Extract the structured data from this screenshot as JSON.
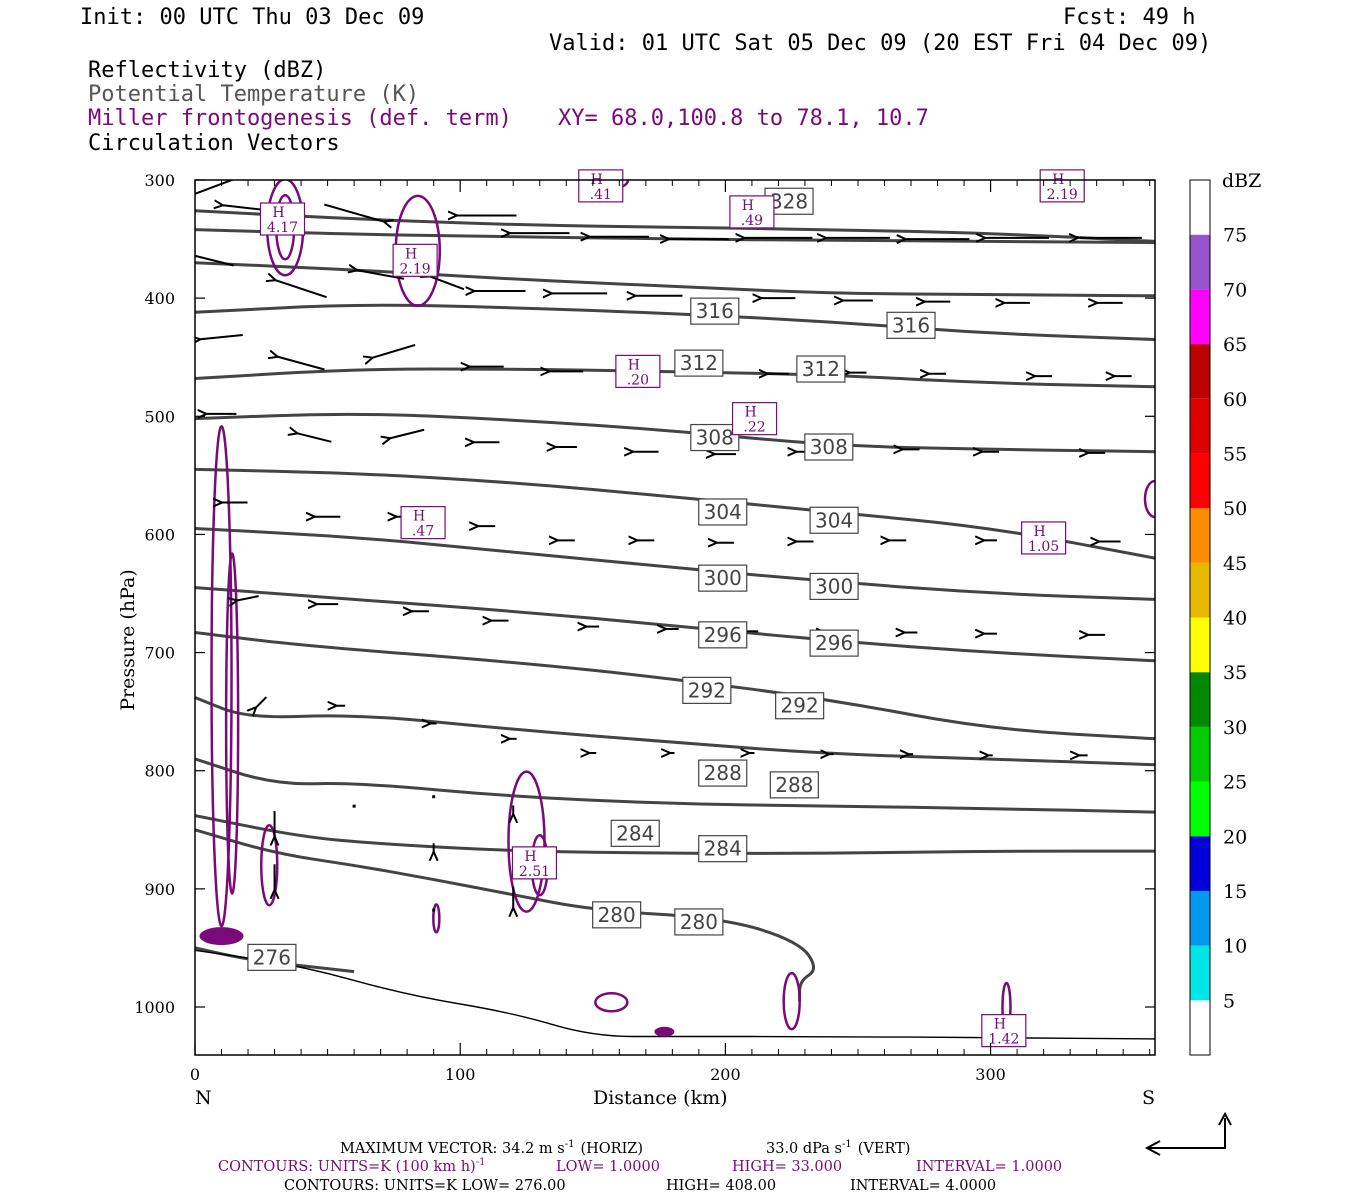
{
  "header": {
    "init": "Init: 00 UTC Thu 03 Dec 09",
    "fcst": "Fcst:   49 h",
    "valid": "Valid: 01 UTC Sat 05 Dec 09 (20 EST Fri 04 Dec 09)",
    "field1": "Reflectivity (dBZ)",
    "field2": "Potential Temperature (K)",
    "field3": "Miller frontogenesis (def. term)",
    "xy": "XY=  68.0,100.8 to  78.1, 10.7",
    "field4": "Circulation Vectors"
  },
  "colors": {
    "frontogenesis": "#7a0a7a",
    "theta": "#444444",
    "vectors": "#000000"
  },
  "footer": {
    "line1a": "MAXIMUM VECTOR:  34.2 m s",
    "line1b": "(HORIZ)",
    "line1c": "33.0 dPa s",
    "line1d": "(VERT)",
    "line2": "CONTOURS:  UNITS=K (100 km h)",
    "line2b": "LOW=   1.0000",
    "line2c": "HIGH=   33.000",
    "line2d": "INTERVAL=    1.0000",
    "line3": "CONTOURS:  UNITS=K   LOW=   276.00",
    "line3b": "HIGH=   408.00",
    "line3c": "INTERVAL=    4.0000",
    "sup": "-1"
  },
  "chart_data": {
    "type": "cross-section",
    "xlabel": "Distance (km)",
    "ylabel": "Pressure (hPa)",
    "x_ticks": [
      "0",
      "100",
      "200",
      "300"
    ],
    "y_ticks": [
      "300",
      "400",
      "500",
      "600",
      "700",
      "800",
      "900",
      "1000"
    ],
    "xlim": [
      0,
      362
    ],
    "ylim": [
      1040,
      300
    ],
    "x_start_label": "N",
    "x_end_label": "S",
    "colorbar": {
      "unit": "dBZ",
      "levels": [
        "5",
        "10",
        "15",
        "20",
        "25",
        "30",
        "35",
        "40",
        "45",
        "50",
        "55",
        "60",
        "65",
        "70",
        "75"
      ],
      "colors": [
        "#ffffff",
        "#00e5e5",
        "#0099ee",
        "#0000dd",
        "#00ff00",
        "#00cc00",
        "#008800",
        "#ffff00",
        "#e6b800",
        "#ff8c00",
        "#ff0000",
        "#dd0000",
        "#bb0000",
        "#ff00ff",
        "#9955cc",
        "#ffffff"
      ]
    },
    "theta_labels": [
      {
        "v": "328",
        "x": 224,
        "p": 318
      },
      {
        "v": "316",
        "x": 196,
        "p": 411
      },
      {
        "v": "316",
        "x": 270,
        "p": 423
      },
      {
        "v": "312",
        "x": 190,
        "p": 455
      },
      {
        "v": "312",
        "x": 236,
        "p": 460
      },
      {
        "v": "308",
        "x": 196,
        "p": 518
      },
      {
        "v": "308",
        "x": 239,
        "p": 526
      },
      {
        "v": "304",
        "x": 199,
        "p": 581
      },
      {
        "v": "304",
        "x": 241,
        "p": 588
      },
      {
        "v": "300",
        "x": 199,
        "p": 637
      },
      {
        "v": "300",
        "x": 241,
        "p": 644
      },
      {
        "v": "296",
        "x": 199,
        "p": 685
      },
      {
        "v": "296",
        "x": 241,
        "p": 692
      },
      {
        "v": "292",
        "x": 193,
        "p": 732
      },
      {
        "v": "292",
        "x": 228,
        "p": 745
      },
      {
        "v": "288",
        "x": 199,
        "p": 802
      },
      {
        "v": "288",
        "x": 226,
        "p": 812
      },
      {
        "v": "284",
        "x": 166,
        "p": 853
      },
      {
        "v": "284",
        "x": 199,
        "p": 866
      },
      {
        "v": "280",
        "x": 159,
        "p": 922
      },
      {
        "v": "280",
        "x": 190,
        "p": 928
      },
      {
        "v": "276",
        "x": 29,
        "p": 958
      }
    ],
    "theta_lines": [
      [
        [
          0,
          326
        ],
        [
          60,
          333
        ],
        [
          120,
          338
        ],
        [
          180,
          340
        ],
        [
          240,
          342
        ],
        [
          300,
          345
        ],
        [
          362,
          352
        ]
      ],
      [
        [
          0,
          342
        ],
        [
          60,
          346
        ],
        [
          120,
          348
        ],
        [
          180,
          350
        ],
        [
          240,
          351
        ],
        [
          300,
          352
        ],
        [
          362,
          353
        ]
      ],
      [
        [
          0,
          370
        ],
        [
          60,
          376
        ],
        [
          120,
          384
        ],
        [
          180,
          390
        ],
        [
          240,
          396
        ],
        [
          300,
          397
        ],
        [
          362,
          398
        ]
      ],
      [
        [
          0,
          412
        ],
        [
          60,
          405
        ],
        [
          120,
          408
        ],
        [
          180,
          413
        ],
        [
          240,
          420
        ],
        [
          300,
          430
        ],
        [
          362,
          435
        ]
      ],
      [
        [
          0,
          468
        ],
        [
          60,
          460
        ],
        [
          120,
          460
        ],
        [
          180,
          462
        ],
        [
          240,
          465
        ],
        [
          300,
          472
        ],
        [
          362,
          475
        ]
      ],
      [
        [
          0,
          502
        ],
        [
          60,
          497
        ],
        [
          120,
          503
        ],
        [
          180,
          512
        ],
        [
          240,
          525
        ],
        [
          300,
          528
        ],
        [
          362,
          530
        ]
      ],
      [
        [
          0,
          545
        ],
        [
          60,
          548
        ],
        [
          120,
          556
        ],
        [
          180,
          568
        ],
        [
          240,
          581
        ],
        [
          300,
          594
        ],
        [
          362,
          620
        ]
      ],
      [
        [
          0,
          595
        ],
        [
          60,
          602
        ],
        [
          120,
          615
        ],
        [
          180,
          628
        ],
        [
          240,
          640
        ],
        [
          300,
          650
        ],
        [
          362,
          655
        ]
      ],
      [
        [
          0,
          645
        ],
        [
          60,
          655
        ],
        [
          120,
          665
        ],
        [
          180,
          677
        ],
        [
          240,
          690
        ],
        [
          300,
          700
        ],
        [
          362,
          707
        ]
      ],
      [
        [
          0,
          683
        ],
        [
          40,
          694
        ],
        [
          120,
          708
        ],
        [
          180,
          722
        ],
        [
          240,
          740
        ],
        [
          300,
          765
        ],
        [
          362,
          773
        ]
      ],
      [
        [
          0,
          738
        ],
        [
          20,
          756
        ],
        [
          60,
          752
        ],
        [
          120,
          765
        ],
        [
          180,
          776
        ],
        [
          240,
          786
        ],
        [
          300,
          790
        ],
        [
          362,
          795
        ]
      ],
      [
        [
          0,
          790
        ],
        [
          30,
          812
        ],
        [
          60,
          810
        ],
        [
          120,
          822
        ],
        [
          180,
          828
        ],
        [
          240,
          830
        ],
        [
          300,
          832
        ],
        [
          362,
          835
        ]
      ],
      [
        [
          0,
          838
        ],
        [
          40,
          856
        ],
        [
          70,
          862
        ],
        [
          120,
          868
        ],
        [
          180,
          870
        ],
        [
          240,
          870
        ],
        [
          300,
          868
        ],
        [
          362,
          868
        ]
      ],
      [
        [
          0,
          850
        ],
        [
          30,
          870
        ],
        [
          60,
          880
        ],
        [
          90,
          892
        ],
        [
          120,
          905
        ],
        [
          150,
          918
        ],
        [
          200,
          925
        ],
        [
          228,
          945
        ],
        [
          235,
          968
        ],
        [
          228,
          978
        ],
        [
          228,
          995
        ]
      ],
      [
        [
          0,
          950
        ],
        [
          20,
          960
        ],
        [
          40,
          965
        ],
        [
          60,
          970
        ]
      ]
    ],
    "surface": [
      [
        0,
        952
      ],
      [
        40,
        965
      ],
      [
        80,
        990
      ],
      [
        120,
        1005
      ],
      [
        150,
        1025
      ],
      [
        180,
        1025
      ],
      [
        240,
        1025
      ],
      [
        300,
        1026
      ],
      [
        362,
        1027
      ]
    ],
    "frontogenesis_maxima": [
      {
        "v": "4.17",
        "x": 33,
        "p": 333
      },
      {
        "v": ".41",
        "x": 153,
        "p": 305
      },
      {
        "v": ".49",
        "x": 210,
        "p": 327
      },
      {
        "v": "2.19",
        "x": 327,
        "p": 305
      },
      {
        "v": "2.19",
        "x": 83,
        "p": 368
      },
      {
        "v": ".20",
        "x": 167,
        "p": 462
      },
      {
        "v": ".22",
        "x": 211,
        "p": 502
      },
      {
        "v": ".47",
        "x": 86,
        "p": 590
      },
      {
        "v": "1.05",
        "x": 320,
        "p": 603
      },
      {
        "v": "2.51",
        "x": 128,
        "p": 878
      },
      {
        "v": "1.42",
        "x": 305,
        "p": 1020
      }
    ],
    "vectors": [
      {
        "x": 2,
        "p": 310,
        "u": 0.8,
        "w": -0.3
      },
      {
        "x": 25,
        "p": 325,
        "u": -0.9,
        "w": -0.1
      },
      {
        "x": 60,
        "p": 328,
        "u": 0.7,
        "w": 0.2
      },
      {
        "x": 5,
        "p": 367,
        "u": -0.6,
        "w": -0.15
      },
      {
        "x": 40,
        "p": 392,
        "u": -0.6,
        "w": -0.2
      },
      {
        "x": 70,
        "p": 380,
        "u": -0.55,
        "w": -0.1
      },
      {
        "x": 95,
        "p": 387,
        "u": -0.4,
        "w": -0.15
      },
      {
        "x": 110,
        "p": 330,
        "u": -0.7,
        "w": 0
      },
      {
        "x": 130,
        "p": 345,
        "u": -0.7,
        "w": 0
      },
      {
        "x": 160,
        "p": 348,
        "u": -0.7,
        "w": 0
      },
      {
        "x": 190,
        "p": 350,
        "u": -0.7,
        "w": 0
      },
      {
        "x": 220,
        "p": 349,
        "u": -0.8,
        "w": 0
      },
      {
        "x": 250,
        "p": 349,
        "u": -0.75,
        "w": 0
      },
      {
        "x": 280,
        "p": 350,
        "u": -0.75,
        "w": 0
      },
      {
        "x": 310,
        "p": 349,
        "u": -0.75,
        "w": 0
      },
      {
        "x": 345,
        "p": 349,
        "u": -0.75,
        "w": 0
      },
      {
        "x": 115,
        "p": 394,
        "u": -0.6,
        "w": 0
      },
      {
        "x": 145,
        "p": 396,
        "u": -0.65,
        "w": 0
      },
      {
        "x": 175,
        "p": 398,
        "u": -0.55,
        "w": 0
      },
      {
        "x": 220,
        "p": 400,
        "u": -0.4,
        "w": 0
      },
      {
        "x": 250,
        "p": 402,
        "u": -0.35,
        "w": 0
      },
      {
        "x": 280,
        "p": 403,
        "u": -0.3,
        "w": 0
      },
      {
        "x": 310,
        "p": 404,
        "u": -0.3,
        "w": 0
      },
      {
        "x": 345,
        "p": 404,
        "u": -0.3,
        "w": 0
      },
      {
        "x": 10,
        "p": 433,
        "u": -0.5,
        "w": 0.05
      },
      {
        "x": 40,
        "p": 455,
        "u": -0.55,
        "w": -0.15
      },
      {
        "x": 75,
        "p": 445,
        "u": -0.5,
        "w": 0.15
      },
      {
        "x": 110,
        "p": 458,
        "u": -0.4,
        "w": 0
      },
      {
        "x": 140,
        "p": 462,
        "u": -0.4,
        "w": 0
      },
      {
        "x": 170,
        "p": 462,
        "u": -0.35,
        "w": 0
      },
      {
        "x": 220,
        "p": 464,
        "u": -0.25,
        "w": 0
      },
      {
        "x": 250,
        "p": 463,
        "u": -0.2,
        "w": 0
      },
      {
        "x": 280,
        "p": 464,
        "u": -0.2,
        "w": 0
      },
      {
        "x": 320,
        "p": 466,
        "u": -0.2,
        "w": 0
      },
      {
        "x": 350,
        "p": 466,
        "u": -0.2,
        "w": 0
      },
      {
        "x": 10,
        "p": 498,
        "u": -0.35,
        "w": 0
      },
      {
        "x": 45,
        "p": 518,
        "u": -0.4,
        "w": -0.1
      },
      {
        "x": 80,
        "p": 515,
        "u": -0.4,
        "w": 0.1
      },
      {
        "x": 110,
        "p": 522,
        "u": -0.3,
        "w": 0
      },
      {
        "x": 140,
        "p": 526,
        "u": -0.25,
        "w": 0
      },
      {
        "x": 170,
        "p": 530,
        "u": -0.3,
        "w": 0
      },
      {
        "x": 200,
        "p": 532,
        "u": -0.25,
        "w": 0
      },
      {
        "x": 230,
        "p": 530,
        "u": -0.2,
        "w": 0
      },
      {
        "x": 270,
        "p": 528,
        "u": -0.2,
        "w": 0
      },
      {
        "x": 300,
        "p": 530,
        "u": -0.2,
        "w": 0
      },
      {
        "x": 340,
        "p": 531,
        "u": -0.2,
        "w": 0
      },
      {
        "x": 15,
        "p": 573,
        "u": -0.3,
        "w": 0
      },
      {
        "x": 50,
        "p": 585,
        "u": -0.3,
        "w": 0
      },
      {
        "x": 80,
        "p": 585,
        "u": -0.25,
        "w": 0
      },
      {
        "x": 110,
        "p": 593,
        "u": -0.2,
        "w": 0
      },
      {
        "x": 140,
        "p": 605,
        "u": -0.2,
        "w": 0
      },
      {
        "x": 170,
        "p": 605,
        "u": -0.2,
        "w": 0
      },
      {
        "x": 200,
        "p": 607,
        "u": -0.2,
        "w": 0
      },
      {
        "x": 230,
        "p": 606,
        "u": -0.2,
        "w": 0
      },
      {
        "x": 265,
        "p": 605,
        "u": -0.2,
        "w": 0
      },
      {
        "x": 300,
        "p": 605,
        "u": -0.15,
        "w": 0
      },
      {
        "x": 345,
        "p": 606,
        "u": -0.25,
        "w": 0
      },
      {
        "x": 20,
        "p": 654,
        "u": -0.25,
        "w": 0.05
      },
      {
        "x": 50,
        "p": 659,
        "u": -0.25,
        "w": 0
      },
      {
        "x": 85,
        "p": 665,
        "u": -0.2,
        "w": 0
      },
      {
        "x": 115,
        "p": 673,
        "u": -0.2,
        "w": 0
      },
      {
        "x": 150,
        "p": 678,
        "u": -0.15,
        "w": 0
      },
      {
        "x": 180,
        "p": 680,
        "u": -0.15,
        "w": 0
      },
      {
        "x": 210,
        "p": 682,
        "u": -0.15,
        "w": 0
      },
      {
        "x": 240,
        "p": 683,
        "u": -0.15,
        "w": 0
      },
      {
        "x": 270,
        "p": 683,
        "u": -0.15,
        "w": 0
      },
      {
        "x": 300,
        "p": 684,
        "u": -0.15,
        "w": 0
      },
      {
        "x": 340,
        "p": 685,
        "u": -0.2,
        "w": 0
      },
      {
        "x": 25,
        "p": 742,
        "u": -0.12,
        "w": 0.12
      },
      {
        "x": 55,
        "p": 745,
        "u": -0.1,
        "w": 0
      },
      {
        "x": 90,
        "p": 760,
        "u": -0.07,
        "w": 0
      },
      {
        "x": 120,
        "p": 773,
        "u": -0.08,
        "w": 0
      },
      {
        "x": 150,
        "p": 785,
        "u": -0.08,
        "w": 0
      },
      {
        "x": 180,
        "p": 785,
        "u": -0.05,
        "w": 0
      },
      {
        "x": 210,
        "p": 785,
        "u": -0.06,
        "w": 0
      },
      {
        "x": 240,
        "p": 786,
        "u": -0.05,
        "w": 0
      },
      {
        "x": 270,
        "p": 786,
        "u": -0.05,
        "w": 0
      },
      {
        "x": 300,
        "p": 787,
        "u": -0.05,
        "w": 0
      },
      {
        "x": 335,
        "p": 787,
        "u": -0.1,
        "w": 0
      },
      {
        "x": 30,
        "p": 845,
        "u": 0,
        "w": 0.3
      },
      {
        "x": 60,
        "p": 830,
        "u": 0.03,
        "w": 0.03
      },
      {
        "x": 90,
        "p": 822,
        "u": -0.02,
        "w": 0.02
      },
      {
        "x": 120,
        "p": 833,
        "u": 0,
        "w": 0.1
      },
      {
        "x": 30,
        "p": 890,
        "u": 0,
        "w": 0.3
      },
      {
        "x": 90,
        "p": 865,
        "u": 0,
        "w": 0.1
      },
      {
        "x": 120,
        "p": 907,
        "u": 0,
        "w": 0.25
      },
      {
        "x": 90,
        "p": 918,
        "u": 0,
        "w": 0.02
      }
    ]
  }
}
